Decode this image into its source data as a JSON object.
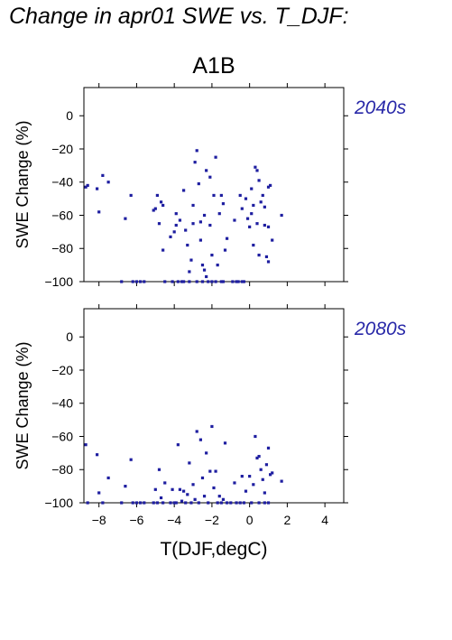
{
  "page_title": "Change in apr01 SWE vs. T_DJF:",
  "colors": {
    "points": "#1e1ea0",
    "period_label": "#2828a8"
  },
  "chart_data": [
    {
      "type": "scatter",
      "title": "A1B",
      "period_label": "2040s",
      "xlabel": "",
      "ylabel": "SWE Change (%)",
      "xlim": [
        -8.8,
        5.0
      ],
      "ylim": [
        -100,
        17
      ],
      "yticks": [
        0,
        -20,
        -40,
        -60,
        -80,
        -100
      ],
      "xticks": [
        -8,
        -6,
        -4,
        -2,
        0,
        2,
        4
      ],
      "show_xtick_labels": false,
      "grid": false,
      "points": [
        [
          -8.7,
          -43
        ],
        [
          -8.6,
          -42
        ],
        [
          -8.1,
          -44
        ],
        [
          -8.0,
          -58
        ],
        [
          -7.8,
          -36
        ],
        [
          -7.5,
          -40
        ],
        [
          -6.8,
          -100
        ],
        [
          -6.6,
          -62
        ],
        [
          -6.3,
          -48
        ],
        [
          -6.2,
          -100
        ],
        [
          -6.0,
          -100
        ],
        [
          -5.8,
          -100
        ],
        [
          -5.6,
          -100
        ],
        [
          -5.1,
          -57
        ],
        [
          -5.0,
          -56
        ],
        [
          -4.9,
          -48
        ],
        [
          -4.8,
          -65
        ],
        [
          -4.7,
          -52
        ],
        [
          -4.6,
          -81
        ],
        [
          -4.6,
          -54
        ],
        [
          -4.5,
          -100
        ],
        [
          -4.2,
          -73
        ],
        [
          -4.1,
          -100
        ],
        [
          -4.0,
          -70
        ],
        [
          -3.9,
          -66
        ],
        [
          -3.9,
          -59
        ],
        [
          -3.8,
          -100
        ],
        [
          -3.7,
          -63
        ],
        [
          -3.6,
          -100
        ],
        [
          -3.5,
          -45
        ],
        [
          -3.5,
          -100
        ],
        [
          -3.4,
          -69
        ],
        [
          -3.3,
          -78
        ],
        [
          -3.2,
          -94
        ],
        [
          -3.2,
          -100
        ],
        [
          -3.1,
          -87
        ],
        [
          -3.0,
          -65
        ],
        [
          -3.0,
          -54
        ],
        [
          -2.9,
          -28
        ],
        [
          -2.8,
          -100
        ],
        [
          -2.8,
          -21
        ],
        [
          -2.7,
          -41
        ],
        [
          -2.6,
          -64
        ],
        [
          -2.6,
          -75
        ],
        [
          -2.5,
          -90
        ],
        [
          -2.5,
          -100
        ],
        [
          -2.4,
          -60
        ],
        [
          -2.4,
          -93
        ],
        [
          -2.3,
          -33
        ],
        [
          -2.3,
          -97
        ],
        [
          -2.2,
          -100
        ],
        [
          -2.1,
          -37
        ],
        [
          -2.1,
          -66
        ],
        [
          -2.0,
          -84
        ],
        [
          -2.0,
          -100
        ],
        [
          -1.9,
          -48
        ],
        [
          -1.8,
          -25
        ],
        [
          -1.8,
          -100
        ],
        [
          -1.7,
          -90
        ],
        [
          -1.6,
          -59
        ],
        [
          -1.5,
          -48
        ],
        [
          -1.5,
          -100
        ],
        [
          -1.4,
          -53
        ],
        [
          -1.4,
          -100
        ],
        [
          -1.3,
          -81
        ],
        [
          -1.2,
          -74
        ],
        [
          -0.9,
          -100
        ],
        [
          -0.8,
          -63
        ],
        [
          -0.7,
          -100
        ],
        [
          -0.6,
          -100
        ],
        [
          -0.5,
          -48
        ],
        [
          -0.4,
          -100
        ],
        [
          -0.4,
          -56
        ],
        [
          -0.3,
          -100
        ],
        [
          -0.2,
          -50
        ],
        [
          -0.1,
          -62
        ],
        [
          0.0,
          -67
        ],
        [
          0.1,
          -59
        ],
        [
          0.1,
          -44
        ],
        [
          0.2,
          -54
        ],
        [
          0.2,
          -78
        ],
        [
          0.3,
          -31
        ],
        [
          0.4,
          -65
        ],
        [
          0.4,
          -33
        ],
        [
          0.5,
          -84
        ],
        [
          0.5,
          -39
        ],
        [
          0.6,
          -52
        ],
        [
          0.7,
          -48
        ],
        [
          0.8,
          -55
        ],
        [
          0.8,
          -66
        ],
        [
          0.9,
          -85
        ],
        [
          1.0,
          -88
        ],
        [
          1.0,
          -67
        ],
        [
          1.0,
          -43
        ],
        [
          1.1,
          -42
        ],
        [
          1.2,
          -75
        ],
        [
          1.7,
          -60
        ]
      ]
    },
    {
      "type": "scatter",
      "title": "",
      "period_label": "2080s",
      "xlabel": "T(DJF,degC)",
      "ylabel": "SWE Change (%)",
      "xlim": [
        -8.8,
        5.0
      ],
      "ylim": [
        -100,
        17
      ],
      "yticks": [
        0,
        -20,
        -40,
        -60,
        -80,
        -100
      ],
      "xticks": [
        -8,
        -6,
        -4,
        -2,
        0,
        2,
        4
      ],
      "xtick_labels": [
        "−8",
        "−6",
        "−4",
        "−2",
        "0",
        "2",
        "4"
      ],
      "show_xtick_labels": true,
      "grid": false,
      "points": [
        [
          -8.7,
          -65
        ],
        [
          -8.6,
          -100
        ],
        [
          -8.1,
          -71
        ],
        [
          -8.0,
          -94
        ],
        [
          -7.8,
          -100
        ],
        [
          -7.5,
          -85
        ],
        [
          -6.8,
          -100
        ],
        [
          -6.6,
          -90
        ],
        [
          -6.3,
          -74
        ],
        [
          -6.2,
          -100
        ],
        [
          -6.0,
          -100
        ],
        [
          -5.8,
          -100
        ],
        [
          -5.6,
          -100
        ],
        [
          -5.1,
          -100
        ],
        [
          -5.0,
          -92
        ],
        [
          -4.9,
          -100
        ],
        [
          -4.8,
          -80
        ],
        [
          -4.7,
          -97
        ],
        [
          -4.6,
          -100
        ],
        [
          -4.5,
          -88
        ],
        [
          -4.2,
          -100
        ],
        [
          -4.1,
          -92
        ],
        [
          -4.0,
          -100
        ],
        [
          -3.9,
          -100
        ],
        [
          -3.8,
          -65
        ],
        [
          -3.7,
          -92
        ],
        [
          -3.6,
          -99
        ],
        [
          -3.5,
          -93
        ],
        [
          -3.4,
          -100
        ],
        [
          -3.3,
          -95
        ],
        [
          -3.2,
          -76
        ],
        [
          -3.1,
          -100
        ],
        [
          -3.0,
          -89
        ],
        [
          -2.9,
          -98
        ],
        [
          -2.8,
          -57
        ],
        [
          -2.7,
          -100
        ],
        [
          -2.6,
          -62
        ],
        [
          -2.5,
          -85
        ],
        [
          -2.4,
          -96
        ],
        [
          -2.3,
          -70
        ],
        [
          -2.2,
          -100
        ],
        [
          -2.1,
          -81
        ],
        [
          -2.0,
          -54
        ],
        [
          -1.9,
          -91
        ],
        [
          -1.8,
          -81
        ],
        [
          -1.7,
          -100
        ],
        [
          -1.6,
          -96
        ],
        [
          -1.5,
          -100
        ],
        [
          -1.4,
          -98
        ],
        [
          -1.3,
          -64
        ],
        [
          -1.2,
          -100
        ],
        [
          -1.0,
          -100
        ],
        [
          -0.8,
          -88
        ],
        [
          -0.7,
          -100
        ],
        [
          -0.5,
          -100
        ],
        [
          -0.4,
          -84
        ],
        [
          -0.3,
          -100
        ],
        [
          -0.2,
          -93
        ],
        [
          0.0,
          -84
        ],
        [
          0.1,
          -100
        ],
        [
          0.2,
          -89
        ],
        [
          0.3,
          -60
        ],
        [
          0.4,
          -73
        ],
        [
          0.5,
          -100
        ],
        [
          0.5,
          -72
        ],
        [
          0.6,
          -80
        ],
        [
          0.7,
          -86
        ],
        [
          0.8,
          -100
        ],
        [
          0.8,
          -94
        ],
        [
          0.9,
          -77
        ],
        [
          1.0,
          -100
        ],
        [
          1.0,
          -67
        ],
        [
          1.1,
          -83
        ],
        [
          1.2,
          -82
        ],
        [
          1.7,
          -87
        ]
      ]
    }
  ]
}
